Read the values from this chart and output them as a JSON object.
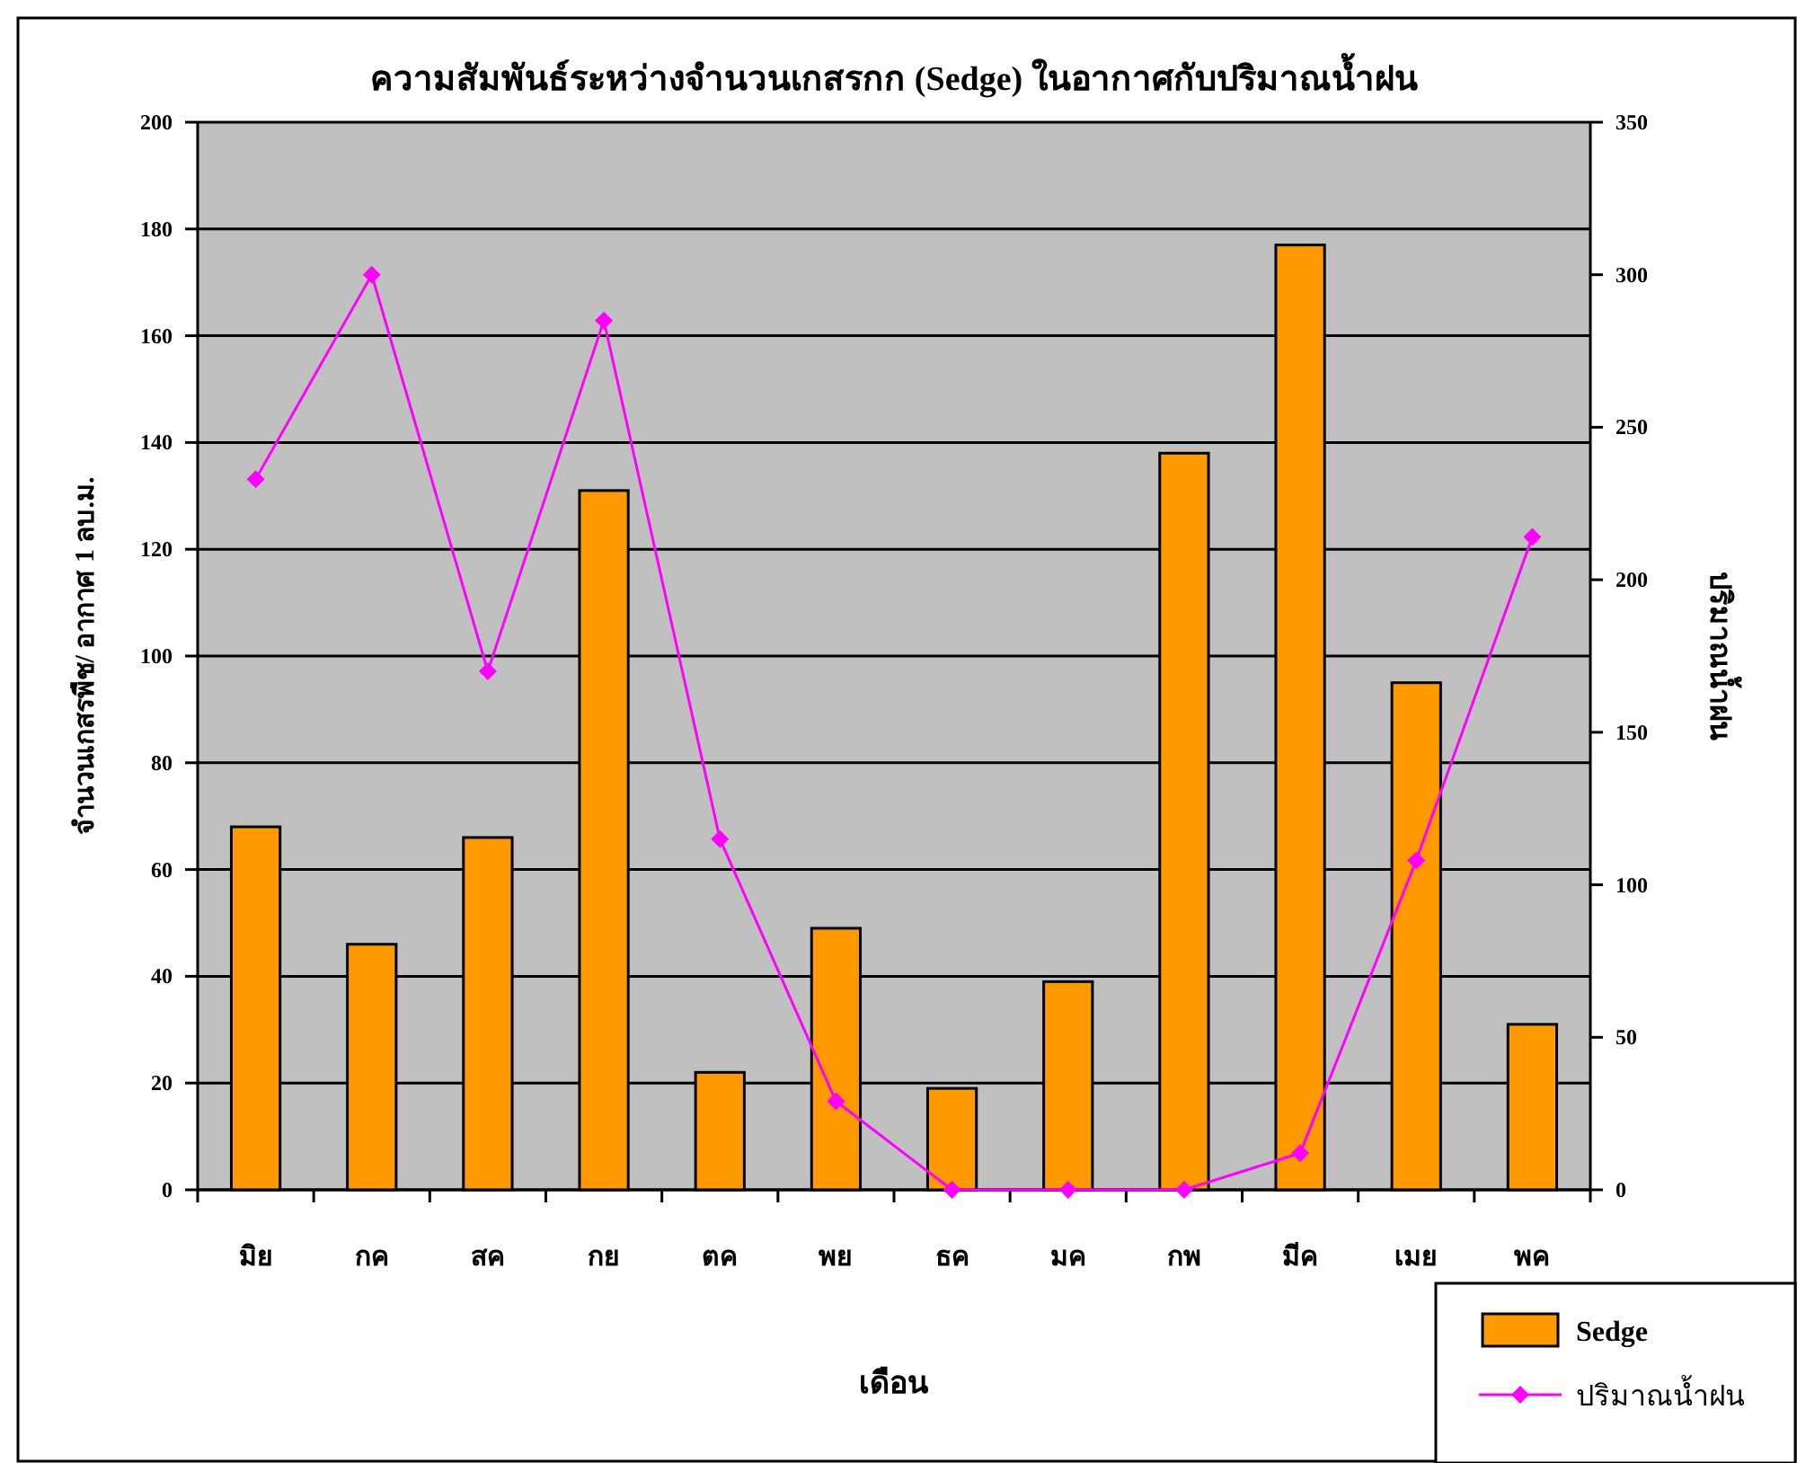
{
  "chart_data": {
    "type": "bar",
    "title": "ความสัมพันธ์ระหว่างจำนวนเกสรกก (Sedge) ในอากาศกับปริมาณน้ำฝน",
    "xlabel": "เดือน",
    "ylabel": "จำนวนเกสรพืช/ อากาศ 1 ลบ.ม.",
    "y2label": "ปริมาณน้ำฝน",
    "categories": [
      "มิย",
      "กค",
      "สค",
      "กย",
      "ตค",
      "พย",
      "ธค",
      "มค",
      "กพ",
      "มีค",
      "เมย",
      "พค"
    ],
    "series": [
      {
        "name": "Sedge",
        "color": "#ff9900",
        "values": [
          68,
          46,
          66,
          131,
          22,
          49,
          19,
          39,
          138,
          177,
          95,
          31
        ]
      },
      {
        "name": "ปริมาณน้ำฝน",
        "type": "line",
        "axis": "y2",
        "color": "#ff00ff",
        "marker": "diamond",
        "values": [
          233,
          300,
          170,
          285,
          115,
          29,
          0,
          0,
          0,
          12,
          108,
          214
        ]
      }
    ],
    "ylim": [
      0,
      200
    ],
    "yticks": [
      0,
      20,
      40,
      60,
      80,
      100,
      120,
      140,
      160,
      180,
      200
    ],
    "y2lim": [
      0,
      350
    ],
    "y2ticks": [
      0,
      50,
      100,
      150,
      200,
      250,
      300,
      350
    ],
    "grid": "y",
    "legend": "bottom right"
  }
}
